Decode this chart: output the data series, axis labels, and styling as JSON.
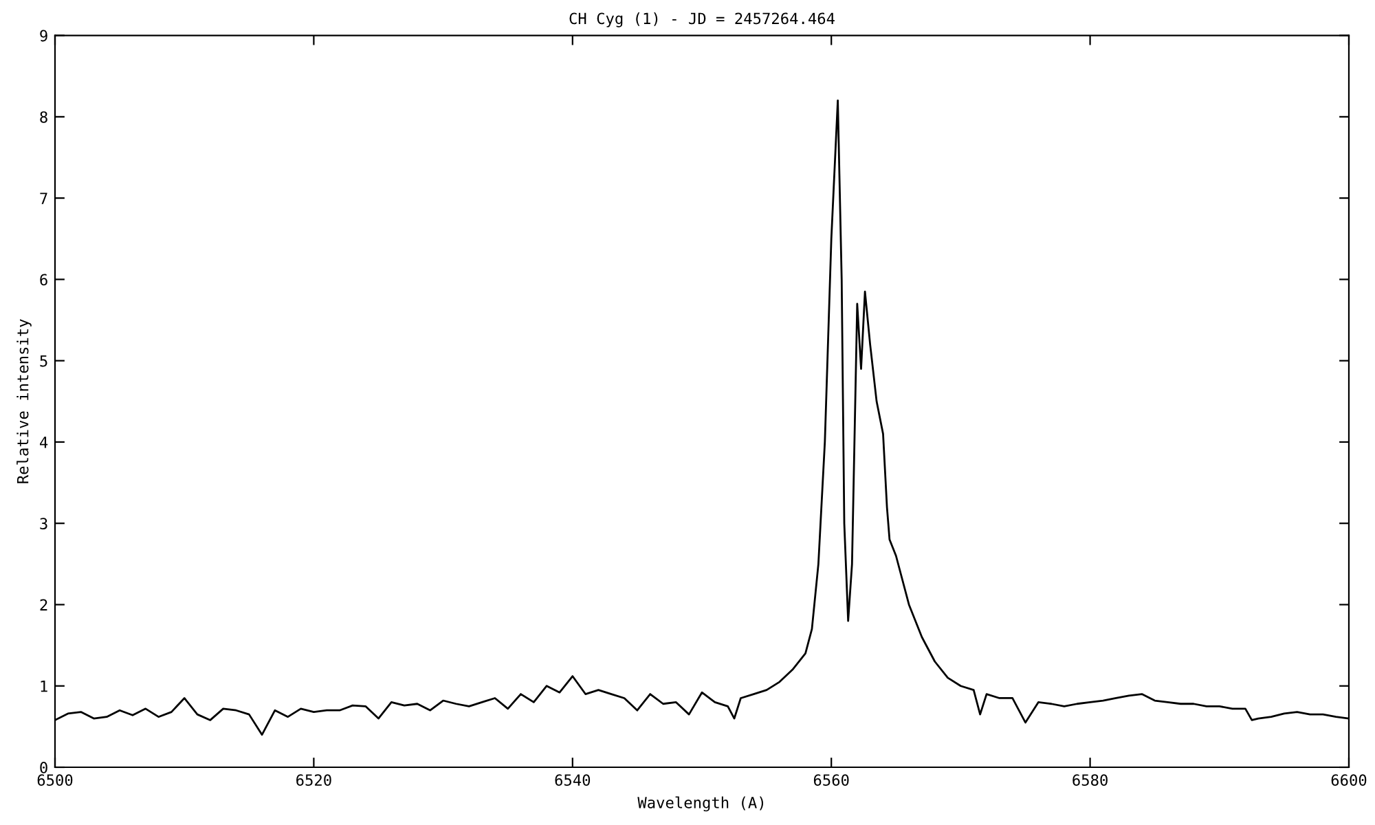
{
  "chart_data": {
    "type": "line",
    "title": "CH Cyg (1) - JD = 2457264.464",
    "xlabel": "Wavelength (A)",
    "ylabel": "Relative intensity",
    "x": [
      6500,
      6501,
      6502,
      6503,
      6504,
      6505,
      6506,
      6507,
      6508,
      6509,
      6510,
      6511,
      6512,
      6513,
      6514,
      6515,
      6516,
      6517,
      6518,
      6519,
      6520,
      6521,
      6522,
      6523,
      6524,
      6525,
      6526,
      6527,
      6528,
      6529,
      6530,
      6531,
      6532,
      6533,
      6534,
      6535,
      6536,
      6537,
      6538,
      6539,
      6540,
      6541,
      6542,
      6543,
      6544,
      6545,
      6546,
      6547,
      6548,
      6549,
      6550,
      6551,
      6552,
      6552.5,
      6553,
      6554,
      6555,
      6556,
      6557,
      6558,
      6558.5,
      6559,
      6559.5,
      6560,
      6560.5,
      6560.8,
      6561,
      6561.3,
      6561.6,
      6562,
      6562.3,
      6562.6,
      6563,
      6563.5,
      6564,
      6564.3,
      6564.5,
      6565,
      6566,
      6567,
      6568,
      6569,
      6570,
      6571,
      6571.5,
      6572,
      6573,
      6574,
      6575,
      6576,
      6577,
      6578,
      6579,
      6580,
      6581,
      6582,
      6583,
      6584,
      6585,
      6586,
      6587,
      6588,
      6589,
      6590,
      6591,
      6592,
      6592.5,
      6593,
      6594,
      6595,
      6596,
      6597,
      6598,
      6599,
      6600
    ],
    "series": [
      {
        "color": "#000000",
        "values": [
          0.58,
          0.66,
          0.68,
          0.6,
          0.62,
          0.7,
          0.64,
          0.72,
          0.62,
          0.68,
          0.85,
          0.65,
          0.58,
          0.72,
          0.7,
          0.65,
          0.4,
          0.7,
          0.62,
          0.72,
          0.68,
          0.7,
          0.7,
          0.76,
          0.75,
          0.6,
          0.8,
          0.76,
          0.78,
          0.7,
          0.82,
          0.78,
          0.75,
          0.8,
          0.85,
          0.72,
          0.9,
          0.8,
          1.0,
          0.92,
          1.12,
          0.9,
          0.95,
          0.9,
          0.85,
          0.7,
          0.9,
          0.78,
          0.8,
          0.65,
          0.92,
          0.8,
          0.75,
          0.6,
          0.85,
          0.9,
          0.95,
          1.05,
          1.2,
          1.4,
          1.7,
          2.5,
          4.0,
          6.5,
          8.2,
          6.0,
          3.0,
          1.8,
          2.5,
          5.7,
          4.9,
          5.85,
          5.2,
          4.5,
          4.1,
          3.2,
          2.8,
          2.6,
          2.0,
          1.6,
          1.3,
          1.1,
          1.0,
          0.95,
          0.65,
          0.9,
          0.85,
          0.85,
          0.55,
          0.8,
          0.78,
          0.75,
          0.78,
          0.8,
          0.82,
          0.85,
          0.88,
          0.9,
          0.82,
          0.8,
          0.78,
          0.78,
          0.75,
          0.75,
          0.72,
          0.72,
          0.58,
          0.6,
          0.62,
          0.66,
          0.68,
          0.65,
          0.65,
          0.62,
          0.6
        ]
      }
    ],
    "xlim": [
      6500,
      6600
    ],
    "ylim": [
      0,
      9
    ],
    "xticks": [
      6500,
      6520,
      6540,
      6560,
      6580,
      6600
    ],
    "yticks": [
      0,
      1,
      2,
      3,
      4,
      5,
      6,
      7,
      8,
      9
    ],
    "grid": false,
    "legend": false,
    "marker": "none",
    "line_style": "solid"
  }
}
